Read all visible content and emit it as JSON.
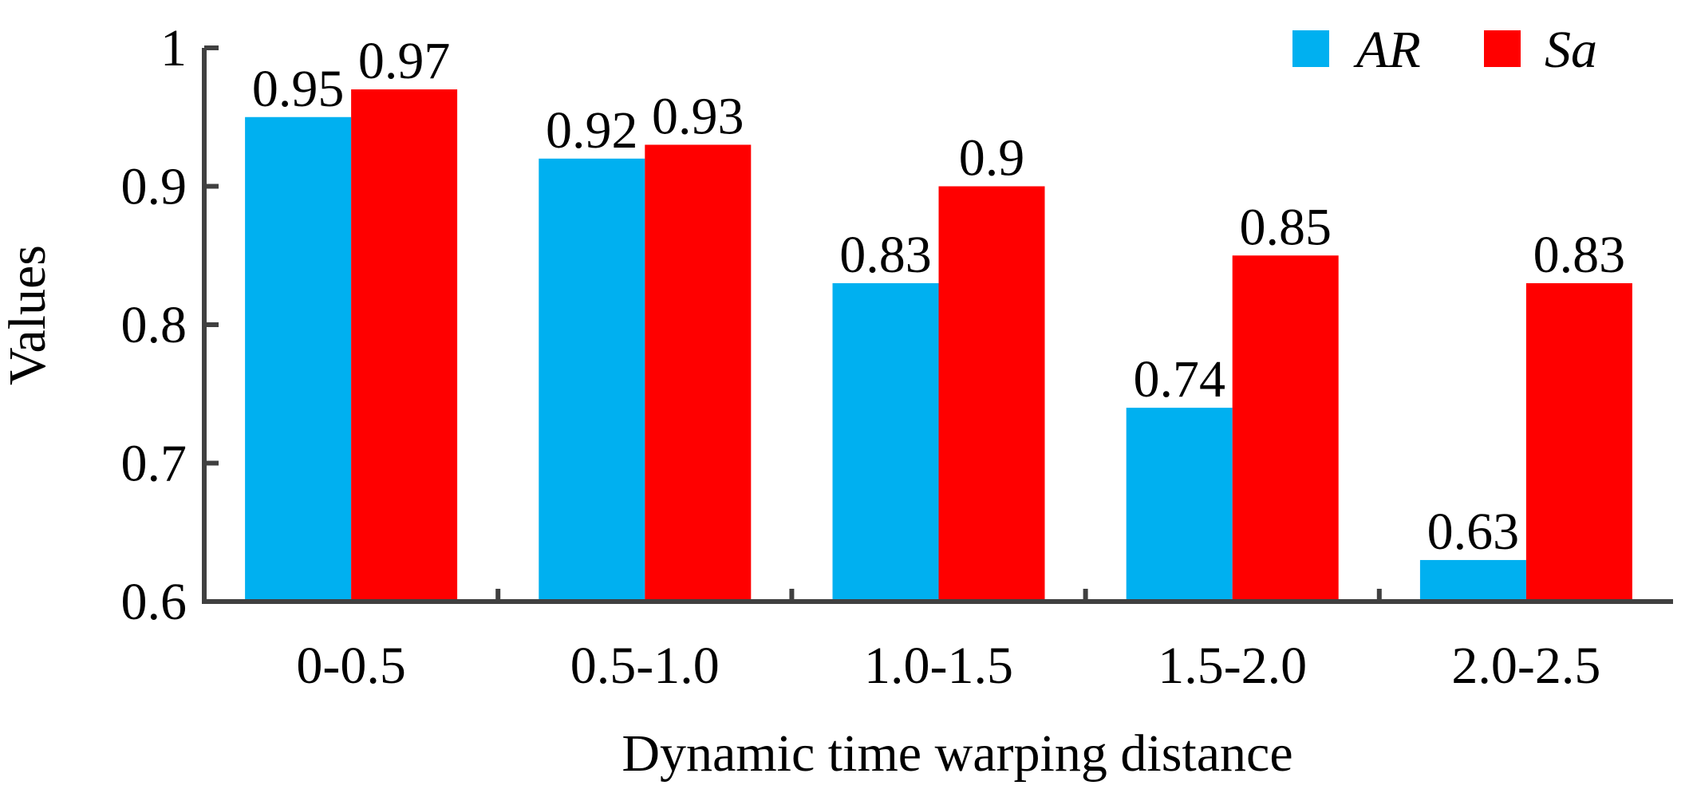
{
  "chart_data": {
    "type": "bar",
    "title": "",
    "xlabel": "Dynamic time warping distance",
    "ylabel": "Values",
    "categories": [
      "0-0.5",
      "0.5-1.0",
      "1.0-1.5",
      "1.5-2.0",
      "2.0-2.5"
    ],
    "ylim": [
      0.6,
      1.0
    ],
    "yticks": [
      0.6,
      0.7,
      0.8,
      0.9,
      1.0
    ],
    "ytick_labels": [
      "0.6",
      "0.7",
      "0.8",
      "0.9",
      "1"
    ],
    "grid": false,
    "legend_position": "top-right",
    "series": [
      {
        "name": "AR",
        "color": "#00B0F0",
        "values": [
          0.95,
          0.92,
          0.83,
          0.74,
          0.63
        ],
        "labels": [
          "0.95",
          "0.92",
          "0.83",
          "0.74",
          "0.63"
        ]
      },
      {
        "name": "Sa",
        "color": "#FF0000",
        "values": [
          0.97,
          0.93,
          0.9,
          0.85,
          0.83
        ],
        "labels": [
          "0.97",
          "0.93",
          "0.9",
          "0.85",
          "0.83"
        ]
      }
    ]
  }
}
